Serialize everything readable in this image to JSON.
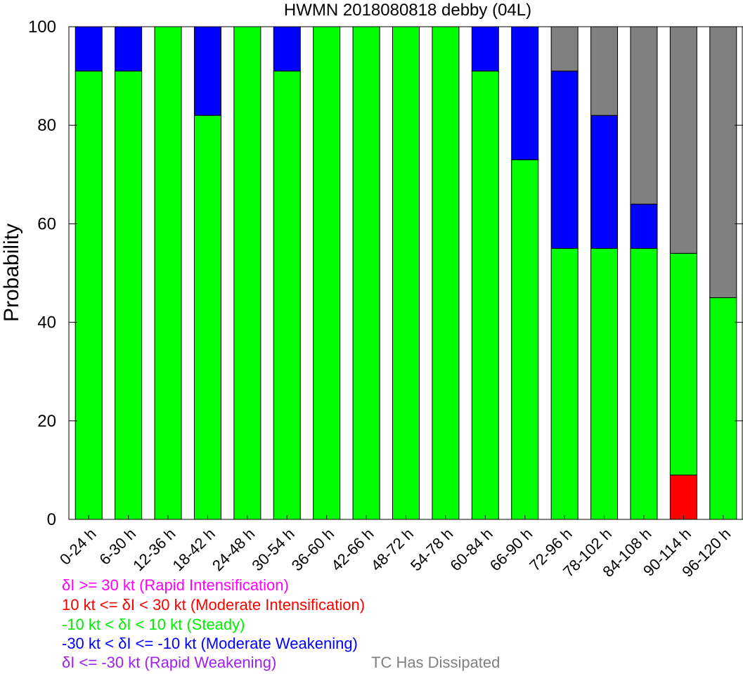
{
  "chart_data": {
    "type": "bar",
    "stacked": true,
    "title": "HWMN 2018080818 debby (04L)",
    "ylabel": "Probability",
    "ylim": [
      0,
      100
    ],
    "yticks": [
      0,
      20,
      40,
      60,
      80,
      100
    ],
    "categories": [
      "0-24 h",
      "6-30 h",
      "12-36 h",
      "18-42 h",
      "24-48 h",
      "30-54 h",
      "36-60 h",
      "42-66 h",
      "48-72 h",
      "54-78 h",
      "60-84 h",
      "66-90 h",
      "72-96 h",
      "78-102 h",
      "84-108 h",
      "90-114 h",
      "96-120 h"
    ],
    "series": [
      {
        "name": "δI >= 30 kt (Rapid Intensification)",
        "color": "#ff00ff",
        "values": [
          0,
          0,
          0,
          0,
          0,
          0,
          0,
          0,
          0,
          0,
          0,
          0,
          0,
          0,
          0,
          0,
          0
        ]
      },
      {
        "name": "10 kt <= δI < 30 kt (Moderate Intensification)",
        "color": "#ff0000",
        "values": [
          0,
          0,
          0,
          0,
          0,
          0,
          0,
          0,
          0,
          0,
          0,
          0,
          0,
          0,
          0,
          9,
          0
        ]
      },
      {
        "name": "-10 kt < δI < 10 kt (Steady)",
        "color": "#00ff00",
        "values": [
          91,
          91,
          100,
          82,
          100,
          91,
          100,
          100,
          100,
          100,
          91,
          73,
          55,
          55,
          55,
          45,
          45
        ]
      },
      {
        "name": "-30 kt < δI <= -10 kt (Moderate Weakening)",
        "color": "#0000ff",
        "values": [
          9,
          9,
          0,
          18,
          0,
          9,
          0,
          0,
          0,
          0,
          9,
          27,
          36,
          27,
          9,
          0,
          0
        ]
      },
      {
        "name": "δI <= -30 kt (Rapid Weakening)",
        "color": "#a020f0",
        "values": [
          0,
          0,
          0,
          0,
          0,
          0,
          0,
          0,
          0,
          0,
          0,
          0,
          0,
          0,
          0,
          0,
          0
        ]
      },
      {
        "name": "TC Has Dissipated",
        "color": "#808080",
        "values": [
          0,
          0,
          0,
          0,
          0,
          0,
          0,
          0,
          0,
          0,
          0,
          0,
          9,
          18,
          36,
          46,
          55
        ]
      }
    ],
    "legend_position": "bottom-left"
  }
}
